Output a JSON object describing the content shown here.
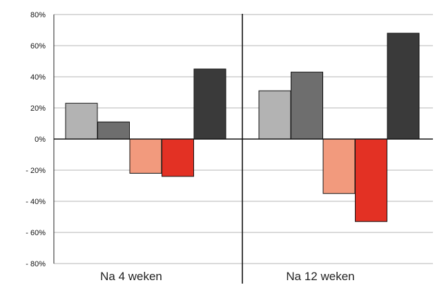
{
  "chart_data": {
    "type": "bar",
    "categories": [
      "Na 4 weken",
      "Na 12 weken"
    ],
    "series": [
      {
        "values": [
          23,
          31
        ],
        "color": "#b3b3b3"
      },
      {
        "values": [
          11,
          43
        ],
        "color": "#6e6e6e"
      },
      {
        "values": [
          -22,
          -35
        ],
        "color": "#f29a7d"
      },
      {
        "values": [
          -24,
          -53
        ],
        "color": "#e33124"
      },
      {
        "values": [
          45,
          68
        ],
        "color": "#3a3a3a"
      }
    ],
    "ylim": [
      -80,
      80
    ],
    "yticks": [
      80,
      60,
      40,
      20,
      0,
      -20,
      -40,
      -60,
      -80
    ],
    "ytick_labels": [
      "80%",
      "60%",
      "40%",
      "20%",
      "0%",
      "- 20%",
      "- 40%",
      "- 60%",
      "- 80%"
    ],
    "grid": true
  }
}
